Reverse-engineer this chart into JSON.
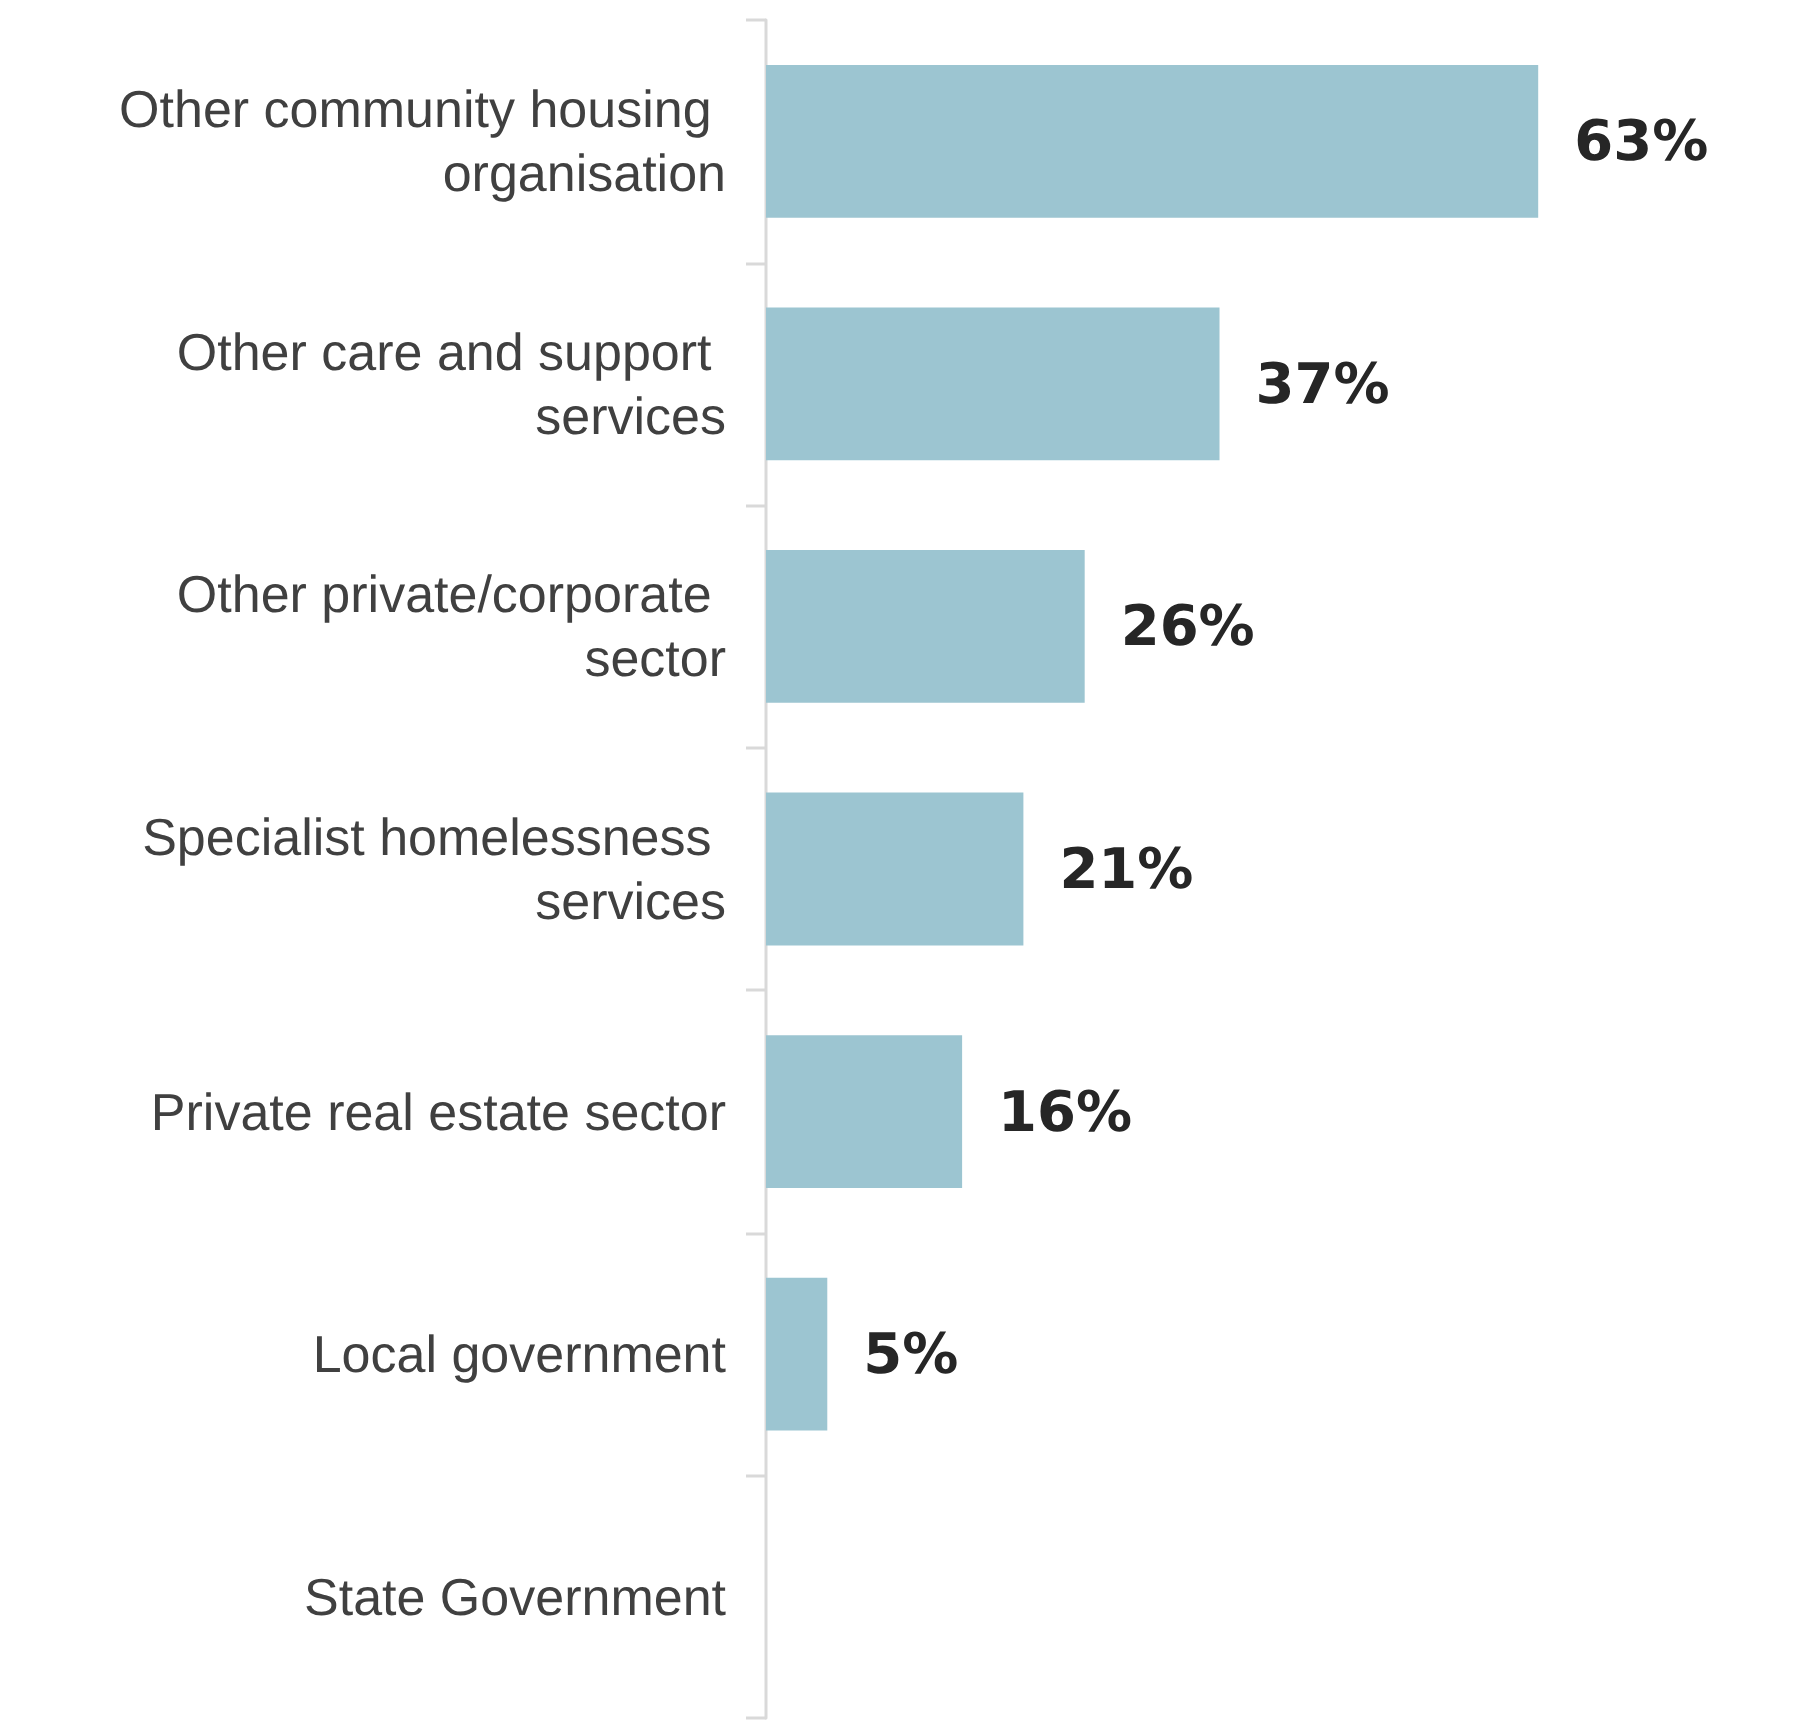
{
  "chart_data": {
    "type": "bar",
    "orientation": "horizontal",
    "categories": [
      "Other community housing organisation",
      "Other care and support services",
      "Other private/corporate sector",
      "Specialist homelessness services",
      "Private real estate sector",
      "Local government",
      "State Government"
    ],
    "values": [
      63,
      37,
      26,
      21,
      16,
      5,
      null
    ],
    "value_labels": [
      "63%",
      "37%",
      "26%",
      "21%",
      "16%",
      "5%",
      null
    ],
    "color": "#9cc5d1",
    "tick_labels": "y"
  }
}
